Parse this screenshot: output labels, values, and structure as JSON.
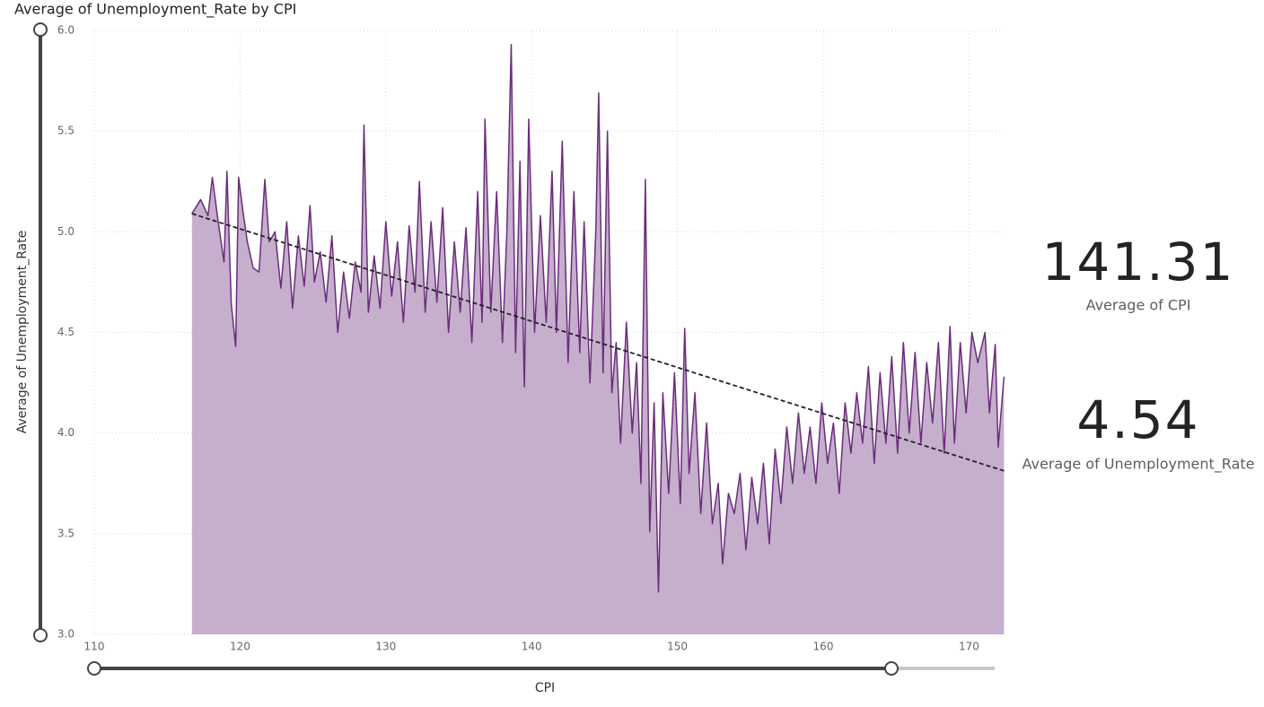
{
  "chart_data": {
    "type": "area",
    "title": "Average of Unemployment_Rate by CPI",
    "x_label": "CPI",
    "y_label": "Average of Unemployment_Rate",
    "color": "#6b2c7b",
    "fill_color": "#c5afcd",
    "xlim": [
      110,
      172.5
    ],
    "ylim": [
      3,
      6
    ],
    "xticks": [
      110,
      120,
      130,
      140,
      150,
      160,
      170
    ],
    "yticks": [
      {
        "value": 6,
        "label": "6.0"
      },
      {
        "value": 5.5,
        "label": "5.5"
      },
      {
        "value": 5,
        "label": "5.0"
      },
      {
        "value": 4.5,
        "label": "4.5"
      },
      {
        "value": 4,
        "label": "4.0"
      },
      {
        "value": 3.5,
        "label": "3.5"
      },
      {
        "value": 3,
        "label": "3.0"
      }
    ],
    "grid": true,
    "x": [
      116.7,
      117.3,
      117.8,
      118.1,
      118.5,
      118.9,
      119.1,
      119.4,
      119.7,
      119.9,
      120.2,
      120.5,
      120.9,
      121.3,
      121.7,
      122.0,
      122.4,
      122.8,
      123.2,
      123.6,
      124.0,
      124.4,
      124.8,
      125.1,
      125.5,
      125.9,
      126.3,
      126.7,
      127.1,
      127.5,
      127.9,
      128.3,
      128.5,
      128.8,
      129.2,
      129.6,
      130.0,
      130.4,
      130.8,
      131.2,
      131.6,
      132.0,
      132.3,
      132.7,
      133.1,
      133.5,
      133.9,
      134.3,
      134.7,
      135.1,
      135.5,
      135.9,
      136.3,
      136.6,
      136.8,
      137.2,
      137.6,
      138.0,
      138.3,
      138.6,
      138.9,
      139.2,
      139.5,
      139.8,
      140.2,
      140.6,
      141.0,
      141.4,
      141.7,
      142.1,
      142.5,
      142.9,
      143.3,
      143.6,
      144.0,
      144.4,
      144.6,
      144.9,
      145.2,
      145.5,
      145.8,
      146.1,
      146.5,
      146.9,
      147.2,
      147.5,
      147.8,
      148.1,
      148.4,
      148.7,
      149.0,
      149.4,
      149.8,
      150.2,
      150.5,
      150.8,
      151.2,
      151.6,
      152.0,
      152.4,
      152.8,
      153.1,
      153.5,
      153.9,
      154.3,
      154.7,
      155.1,
      155.5,
      155.9,
      156.3,
      156.7,
      157.1,
      157.5,
      157.9,
      158.3,
      158.7,
      159.1,
      159.5,
      159.9,
      160.3,
      160.7,
      161.1,
      161.5,
      161.9,
      162.3,
      162.7,
      163.1,
      163.5,
      163.9,
      164.3,
      164.7,
      165.1,
      165.5,
      165.9,
      166.3,
      166.7,
      167.1,
      167.5,
      167.9,
      168.3,
      168.7,
      169.0,
      169.4,
      169.8,
      170.2,
      170.6,
      171.1,
      171.4,
      171.8,
      172.0,
      172.4
    ],
    "values": [
      5.09,
      5.16,
      5.08,
      5.27,
      5.05,
      4.85,
      5.3,
      4.64,
      4.43,
      5.27,
      5.1,
      4.95,
      4.82,
      4.8,
      5.26,
      4.95,
      5.0,
      4.72,
      5.05,
      4.62,
      4.98,
      4.73,
      5.13,
      4.75,
      4.9,
      4.65,
      4.98,
      4.5,
      4.8,
      4.57,
      4.85,
      4.7,
      5.53,
      4.6,
      4.88,
      4.62,
      5.05,
      4.68,
      4.95,
      4.55,
      5.03,
      4.7,
      5.25,
      4.6,
      5.05,
      4.65,
      5.12,
      4.5,
      4.95,
      4.6,
      5.02,
      4.45,
      5.2,
      4.55,
      5.56,
      4.6,
      5.2,
      4.45,
      5.0,
      5.93,
      4.4,
      5.35,
      4.23,
      5.56,
      4.5,
      5.08,
      4.55,
      5.3,
      4.5,
      5.45,
      4.35,
      5.2,
      4.4,
      5.05,
      4.25,
      5.0,
      5.69,
      4.3,
      5.5,
      4.2,
      4.45,
      3.95,
      4.55,
      4.0,
      4.35,
      3.75,
      5.26,
      3.51,
      4.15,
      3.21,
      4.2,
      3.7,
      4.3,
      3.65,
      4.52,
      3.8,
      4.2,
      3.6,
      4.05,
      3.55,
      3.75,
      3.35,
      3.7,
      3.6,
      3.8,
      3.42,
      3.78,
      3.55,
      3.85,
      3.45,
      3.92,
      3.65,
      4.03,
      3.75,
      4.1,
      3.8,
      4.03,
      3.75,
      4.15,
      3.85,
      4.05,
      3.7,
      4.15,
      3.9,
      4.2,
      3.95,
      4.33,
      3.85,
      4.3,
      3.95,
      4.38,
      3.9,
      4.45,
      4.0,
      4.4,
      3.95,
      4.35,
      4.05,
      4.45,
      3.9,
      4.53,
      3.95,
      4.45,
      4.1,
      4.5,
      4.35,
      4.5,
      4.1,
      4.44,
      3.93,
      4.28
    ],
    "trend": {
      "x": [
        116.7,
        172.5
      ],
      "values": [
        5.09,
        3.81
      ],
      "color": "#222222"
    }
  },
  "cards": [
    {
      "value": 141.31,
      "label": "Average of CPI"
    },
    {
      "value": 4.54,
      "label": "Average of Unemployment_Rate"
    }
  ]
}
